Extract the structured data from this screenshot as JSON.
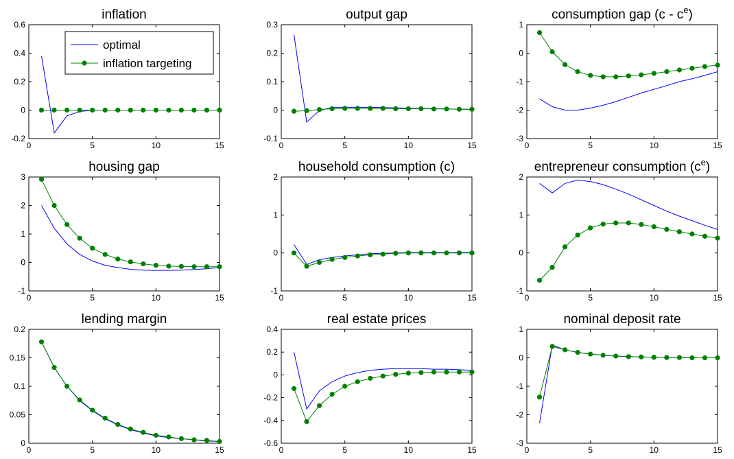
{
  "legend": {
    "entries": [
      "optimal",
      "inflation targeting"
    ]
  },
  "colors": {
    "optimal": "#0000ff",
    "inflation_targeting": "#008000"
  },
  "chart_data": [
    {
      "type": "line",
      "title": "inflation",
      "x": [
        1,
        2,
        3,
        4,
        5,
        6,
        7,
        8,
        9,
        10,
        11,
        12,
        13,
        14,
        15
      ],
      "xlim": [
        0,
        15
      ],
      "xticks": [
        0,
        5,
        10,
        15
      ],
      "ylim": [
        -0.2,
        0.6
      ],
      "yticks": [
        "-0.2",
        "0",
        "0.2",
        "0.4",
        "0.6"
      ],
      "legend": "top-left",
      "series": [
        {
          "name": "optimal",
          "values": [
            0.38,
            -0.16,
            -0.04,
            -0.01,
            0.0,
            0.0,
            0.0,
            0.0,
            0.0,
            0.0,
            0.0,
            0.0,
            0.0,
            0.0,
            0.0
          ]
        },
        {
          "name": "inflation targeting",
          "values": [
            0,
            0,
            0,
            0,
            0,
            0,
            0,
            0,
            0,
            0,
            0,
            0,
            0,
            0,
            0
          ]
        }
      ]
    },
    {
      "type": "line",
      "title": "output gap",
      "x": [
        1,
        2,
        3,
        4,
        5,
        6,
        7,
        8,
        9,
        10,
        11,
        12,
        13,
        14,
        15
      ],
      "xlim": [
        0,
        15
      ],
      "xticks": [
        0,
        5,
        10,
        15
      ],
      "ylim": [
        -0.1,
        0.3
      ],
      "yticks": [
        "-0.1",
        "0",
        "0.1",
        "0.2",
        "0.3"
      ],
      "series": [
        {
          "name": "optimal",
          "values": [
            0.265,
            -0.042,
            -0.002,
            0.01,
            0.01,
            0.01,
            0.01,
            0.009,
            0.008,
            0.007,
            0.006,
            0.005,
            0.004,
            0.003,
            0.003
          ]
        },
        {
          "name": "inflation targeting",
          "values": [
            -0.004,
            -0.002,
            0.002,
            0.005,
            0.006,
            0.006,
            0.006,
            0.006,
            0.005,
            0.005,
            0.005,
            0.004,
            0.004,
            0.003,
            0.003
          ]
        }
      ]
    },
    {
      "type": "line",
      "title_main": "consumption gap (c - c",
      "title_sup": "e",
      "title_tail": ")",
      "x": [
        1,
        2,
        3,
        4,
        5,
        6,
        7,
        8,
        9,
        10,
        11,
        12,
        13,
        14,
        15
      ],
      "xlim": [
        0,
        15
      ],
      "xticks": [
        0,
        5,
        10,
        15
      ],
      "ylim": [
        -3,
        1
      ],
      "yticks": [
        "-3",
        "-2",
        "-1",
        "0",
        "1"
      ],
      "series": [
        {
          "name": "optimal",
          "values": [
            -1.6,
            -1.88,
            -2.0,
            -2.0,
            -1.93,
            -1.83,
            -1.7,
            -1.55,
            -1.4,
            -1.27,
            -1.14,
            -1.0,
            -0.9,
            -0.78,
            -0.65
          ]
        },
        {
          "name": "inflation targeting",
          "values": [
            0.72,
            0.05,
            -0.4,
            -0.65,
            -0.78,
            -0.83,
            -0.83,
            -0.8,
            -0.76,
            -0.71,
            -0.65,
            -0.59,
            -0.53,
            -0.47,
            -0.42
          ]
        }
      ]
    },
    {
      "type": "line",
      "title": "housing gap",
      "x": [
        1,
        2,
        3,
        4,
        5,
        6,
        7,
        8,
        9,
        10,
        11,
        12,
        13,
        14,
        15
      ],
      "xlim": [
        0,
        15
      ],
      "xticks": [
        0,
        5,
        10,
        15
      ],
      "ylim": [
        -1,
        3
      ],
      "yticks": [
        "-1",
        "0",
        "1",
        "2",
        "3"
      ],
      "series": [
        {
          "name": "optimal",
          "values": [
            2.0,
            1.2,
            0.65,
            0.28,
            0.05,
            -0.1,
            -0.18,
            -0.24,
            -0.27,
            -0.28,
            -0.28,
            -0.27,
            -0.25,
            -0.22,
            -0.18
          ]
        },
        {
          "name": "inflation targeting",
          "values": [
            2.92,
            2.0,
            1.33,
            0.85,
            0.5,
            0.28,
            0.12,
            0.02,
            -0.05,
            -0.1,
            -0.13,
            -0.14,
            -0.15,
            -0.15,
            -0.15
          ]
        }
      ]
    },
    {
      "type": "line",
      "title": "household consumption (c)",
      "x": [
        1,
        2,
        3,
        4,
        5,
        6,
        7,
        8,
        9,
        10,
        11,
        12,
        13,
        14,
        15
      ],
      "xlim": [
        0,
        15
      ],
      "xticks": [
        0,
        5,
        10,
        15
      ],
      "ylim": [
        -1,
        2
      ],
      "yticks": [
        "-1",
        "0",
        "1",
        "2"
      ],
      "series": [
        {
          "name": "optimal",
          "values": [
            0.22,
            -0.3,
            -0.18,
            -0.12,
            -0.08,
            -0.05,
            -0.02,
            -0.01,
            0.0,
            0.01,
            0.01,
            0.01,
            0.01,
            0.01,
            0.01
          ]
        },
        {
          "name": "inflation targeting",
          "values": [
            0.0,
            -0.35,
            -0.25,
            -0.17,
            -0.12,
            -0.08,
            -0.05,
            -0.03,
            -0.01,
            0.0,
            0.0,
            0.0,
            0.0,
            0.0,
            0.0
          ]
        }
      ]
    },
    {
      "type": "line",
      "title_main": "entrepreneur consumption (c",
      "title_sup": "e",
      "title_tail": ")",
      "x": [
        1,
        2,
        3,
        4,
        5,
        6,
        7,
        8,
        9,
        10,
        11,
        12,
        13,
        14,
        15
      ],
      "xlim": [
        0,
        15
      ],
      "xticks": [
        0,
        5,
        10,
        15
      ],
      "ylim": [
        -1,
        2
      ],
      "yticks": [
        "-1",
        "0",
        "1",
        "2"
      ],
      "series": [
        {
          "name": "optimal",
          "values": [
            1.83,
            1.58,
            1.83,
            1.92,
            1.88,
            1.8,
            1.68,
            1.55,
            1.4,
            1.25,
            1.1,
            0.97,
            0.85,
            0.73,
            0.62
          ]
        },
        {
          "name": "inflation targeting",
          "values": [
            -0.72,
            -0.38,
            0.16,
            0.47,
            0.66,
            0.76,
            0.79,
            0.79,
            0.75,
            0.69,
            0.62,
            0.56,
            0.5,
            0.44,
            0.39
          ]
        }
      ]
    },
    {
      "type": "line",
      "title": "lending margin",
      "x": [
        1,
        2,
        3,
        4,
        5,
        6,
        7,
        8,
        9,
        10,
        11,
        12,
        13,
        14,
        15
      ],
      "xlim": [
        0,
        15
      ],
      "xticks": [
        0,
        5,
        10,
        15
      ],
      "ylim": [
        0,
        0.2
      ],
      "yticks": [
        "0",
        "0.05",
        "0.1",
        "0.15",
        "0.2"
      ],
      "series": [
        {
          "name": "optimal",
          "values": [
            0.178,
            0.133,
            0.1,
            0.075,
            0.057,
            0.043,
            0.032,
            0.024,
            0.018,
            0.013,
            0.01,
            0.008,
            0.006,
            0.004,
            0.003
          ]
        },
        {
          "name": "inflation targeting",
          "values": [
            0.178,
            0.133,
            0.1,
            0.076,
            0.058,
            0.044,
            0.033,
            0.025,
            0.019,
            0.014,
            0.011,
            0.008,
            0.006,
            0.005,
            0.003
          ]
        }
      ]
    },
    {
      "type": "line",
      "title": "real estate prices",
      "x": [
        1,
        2,
        3,
        4,
        5,
        6,
        7,
        8,
        9,
        10,
        11,
        12,
        13,
        14,
        15
      ],
      "xlim": [
        0,
        15
      ],
      "xticks": [
        0,
        5,
        10,
        15
      ],
      "ylim": [
        -0.6,
        0.4
      ],
      "yticks": [
        "-0.6",
        "-0.4",
        "-0.2",
        "0",
        "0.2",
        "0.4"
      ],
      "series": [
        {
          "name": "optimal",
          "values": [
            0.2,
            -0.3,
            -0.14,
            -0.06,
            -0.01,
            0.02,
            0.04,
            0.05,
            0.055,
            0.055,
            0.055,
            0.05,
            0.05,
            0.045,
            0.04
          ]
        },
        {
          "name": "inflation targeting",
          "values": [
            -0.12,
            -0.41,
            -0.27,
            -0.17,
            -0.1,
            -0.06,
            -0.03,
            -0.01,
            0.005,
            0.015,
            0.02,
            0.025,
            0.025,
            0.025,
            0.025
          ]
        }
      ]
    },
    {
      "type": "line",
      "title": "nominal deposit rate",
      "x": [
        1,
        2,
        3,
        4,
        5,
        6,
        7,
        8,
        9,
        10,
        11,
        12,
        13,
        14,
        15
      ],
      "xlim": [
        0,
        15
      ],
      "xticks": [
        0,
        5,
        10,
        15
      ],
      "ylim": [
        -3,
        1
      ],
      "yticks": [
        "-3",
        "-2",
        "-1",
        "0",
        "1"
      ],
      "series": [
        {
          "name": "optimal",
          "values": [
            -2.3,
            0.45,
            0.28,
            0.19,
            0.13,
            0.09,
            0.06,
            0.04,
            0.03,
            0.02,
            0.01,
            0.01,
            0.0,
            0.0,
            0.0
          ]
        },
        {
          "name": "inflation targeting",
          "values": [
            -1.38,
            0.4,
            0.28,
            0.19,
            0.13,
            0.09,
            0.06,
            0.04,
            0.03,
            0.02,
            0.01,
            0.01,
            0.0,
            0.0,
            0.0
          ]
        }
      ]
    }
  ]
}
